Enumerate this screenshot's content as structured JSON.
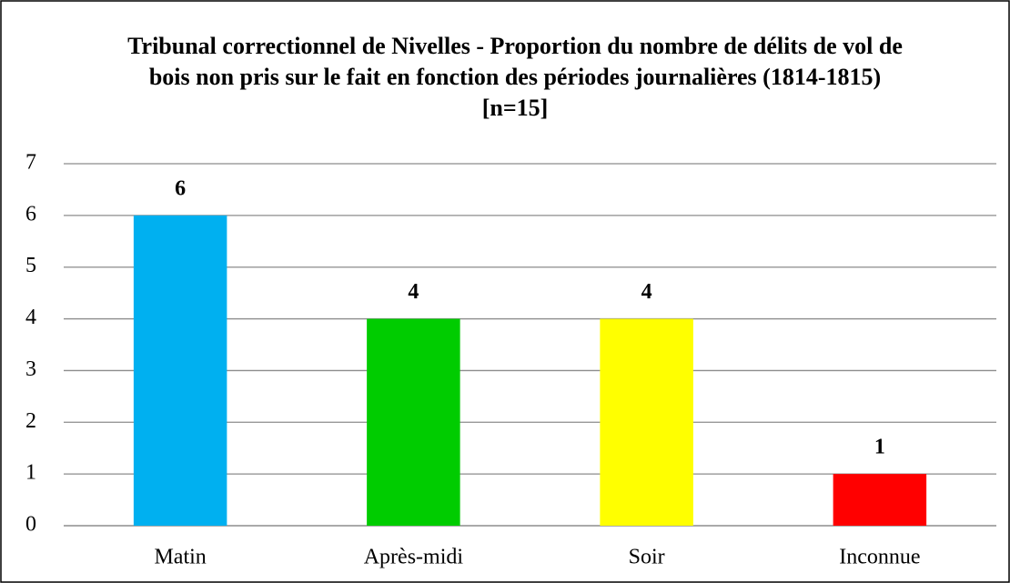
{
  "chart_data": {
    "type": "bar",
    "title": "Tribunal correctionnel de Nivelles - Proportion du nombre de délits de vol de bois non pris sur le fait en fonction des périodes journalières (1814-1815) [n=15]",
    "categories": [
      "Matin",
      "Après-midi",
      "Soir",
      "Inconnue"
    ],
    "values": [
      6,
      4,
      4,
      1
    ],
    "colors": [
      "#00b0f0",
      "#00cc00",
      "#ffff00",
      "#ff0000"
    ],
    "ylim": [
      0,
      7
    ],
    "yticks": [
      0,
      1,
      2,
      3,
      4,
      5,
      6,
      7
    ],
    "grid": true
  }
}
